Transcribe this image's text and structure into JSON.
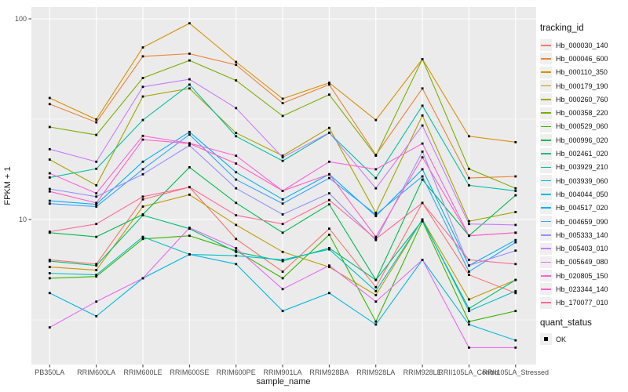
{
  "figure": {
    "panel_background": "#EBEBEB",
    "gridline_color": "#FFFFFF",
    "axis_text_color": "#4D4D4D",
    "axis_title_color": "#1A1A1A",
    "point_color": "#000000"
  },
  "chart_data": {
    "type": "line",
    "xlabel": "sample_name",
    "ylabel": "FPKM + 1",
    "y_scale": "log10",
    "y_ticks": [
      "10",
      "100"
    ],
    "y_tick_values": [
      10,
      100
    ],
    "y_minor_values": [
      3.162,
      31.623
    ],
    "ylim": [
      1.9,
      110
    ],
    "grid": true,
    "legend_position": "right",
    "legend_title": "tracking_id",
    "quant_legend": {
      "title": "quant_status",
      "items": [
        "OK"
      ]
    },
    "categories": [
      "PB350LA",
      "RRIM600LA",
      "RRIM600LE",
      "RRIM600SE",
      "RRIM600PE",
      "RRIM901LA",
      "RRIM928BA",
      "RRIM928LA",
      "RRIM928LE",
      "RRII105LA_Control",
      "RRII105LA_Stressed"
    ],
    "series": [
      {
        "name": "Hb_000030_140",
        "color": "#F8766D",
        "values": [
          6.3,
          6.0,
          12.6,
          14.5,
          8.0,
          5.5,
          9.0,
          4.6,
          12.1,
          5.3,
          4.3
        ]
      },
      {
        "name": "Hb_000046_600",
        "color": "#EA8331",
        "values": [
          37.6,
          30.5,
          65,
          67,
          59,
          38,
          47,
          21,
          45,
          16.1,
          16.4
        ]
      },
      {
        "name": "Hb_000110_350",
        "color": "#D89000",
        "values": [
          40.3,
          31.5,
          72,
          95,
          61,
          40,
          48,
          31.3,
          63,
          26,
          24.3
        ]
      },
      {
        "name": "Hb_000179_190",
        "color": "#C09B00",
        "values": [
          5.8,
          5.6,
          11.6,
          13.3,
          9.4,
          6.9,
          5.8,
          4.2,
          10.0,
          4.0,
          5.0
        ]
      },
      {
        "name": "Hb_000260_760",
        "color": "#A3A500",
        "values": [
          19.9,
          14.8,
          41,
          45,
          27,
          20.8,
          28.6,
          10.8,
          33,
          9.8,
          10.9
        ]
      },
      {
        "name": "Hb_000358_220",
        "color": "#7CAE00",
        "values": [
          28.9,
          26.4,
          50.7,
          62,
          49.3,
          32.8,
          41.9,
          20.8,
          63,
          17.9,
          14.3
        ]
      },
      {
        "name": "Hb_000529_060",
        "color": "#39B600",
        "values": [
          5.1,
          5.2,
          8.0,
          8.3,
          7.0,
          5.1,
          8.4,
          3.1,
          9.8,
          3.1,
          3.5
        ]
      },
      {
        "name": "Hb_000996_020",
        "color": "#00BB4E",
        "values": [
          8.6,
          8.2,
          10.6,
          18.2,
          12.1,
          8.6,
          11.9,
          5.0,
          15.8,
          8.3,
          13.2
        ]
      },
      {
        "name": "Hb_002461_020",
        "color": "#00BF7D",
        "values": [
          6.2,
          5.9,
          10.5,
          9.0,
          6.9,
          6.2,
          7.2,
          5.0,
          9.9,
          3.6,
          5.0
        ]
      },
      {
        "name": "Hb_003929_210",
        "color": "#00C1A3",
        "values": [
          16.2,
          17.9,
          31.3,
          47,
          26,
          19.6,
          27,
          16.1,
          36.9,
          14.8,
          13.9
        ]
      },
      {
        "name": "Hb_003939_060",
        "color": "#00BFC4",
        "values": [
          5.4,
          5.3,
          8.2,
          6.7,
          6.6,
          6.3,
          7.1,
          4.4,
          10.0,
          3.5,
          4.4
        ]
      },
      {
        "name": "Hb_004044_050",
        "color": "#00BAE0",
        "values": [
          4.3,
          3.3,
          5.1,
          6.7,
          6.0,
          3.5,
          4.3,
          3.0,
          6.3,
          3.0,
          2.5
        ]
      },
      {
        "name": "Hb_004517_020",
        "color": "#00B0F6",
        "values": [
          12.4,
          11.9,
          19.4,
          27.3,
          17.2,
          12.6,
          16.8,
          10.4,
          17.8,
          5.9,
          7.9
        ]
      },
      {
        "name": "Hb_004659_090",
        "color": "#35A2FF",
        "values": [
          12.0,
          11.6,
          17.8,
          26.5,
          15.8,
          12.0,
          16.1,
          10.6,
          16.4,
          5.5,
          7.7
        ]
      },
      {
        "name": "Hb_005333_140",
        "color": "#9590FF",
        "values": [
          14.2,
          13.0,
          16.8,
          23.4,
          14.3,
          10.6,
          13.5,
          7.9,
          21.8,
          5.9,
          7.0
        ]
      },
      {
        "name": "Hb_005403_010",
        "color": "#C77CFF",
        "values": [
          22.4,
          19.4,
          45.8,
          50,
          35.9,
          20.4,
          27.1,
          14.3,
          29.4,
          9.5,
          9.4
        ]
      },
      {
        "name": "Hb_005649_080",
        "color": "#E76BF3",
        "values": [
          2.9,
          3.9,
          5.1,
          9.1,
          7.2,
          4.5,
          5.9,
          3.9,
          6.3,
          2.3,
          2.3
        ]
      },
      {
        "name": "Hb_020805_150",
        "color": "#FA62DB",
        "values": [
          17.0,
          13.5,
          26.1,
          24.0,
          20.8,
          13.9,
          19.4,
          17.8,
          23.9,
          8.3,
          8.6
        ]
      },
      {
        "name": "Hb_023344_140",
        "color": "#FF61C3",
        "values": [
          13.8,
          12.1,
          25.0,
          23.9,
          19.0,
          13.9,
          16.8,
          8.2,
          20.4,
          8.3,
          8.6
        ]
      },
      {
        "name": "Hb_170077_010",
        "color": "#FF6A98",
        "values": [
          8.7,
          9.5,
          13.0,
          14.5,
          10.5,
          9.5,
          12.5,
          8.0,
          12.1,
          6.3,
          6.0
        ]
      }
    ]
  }
}
